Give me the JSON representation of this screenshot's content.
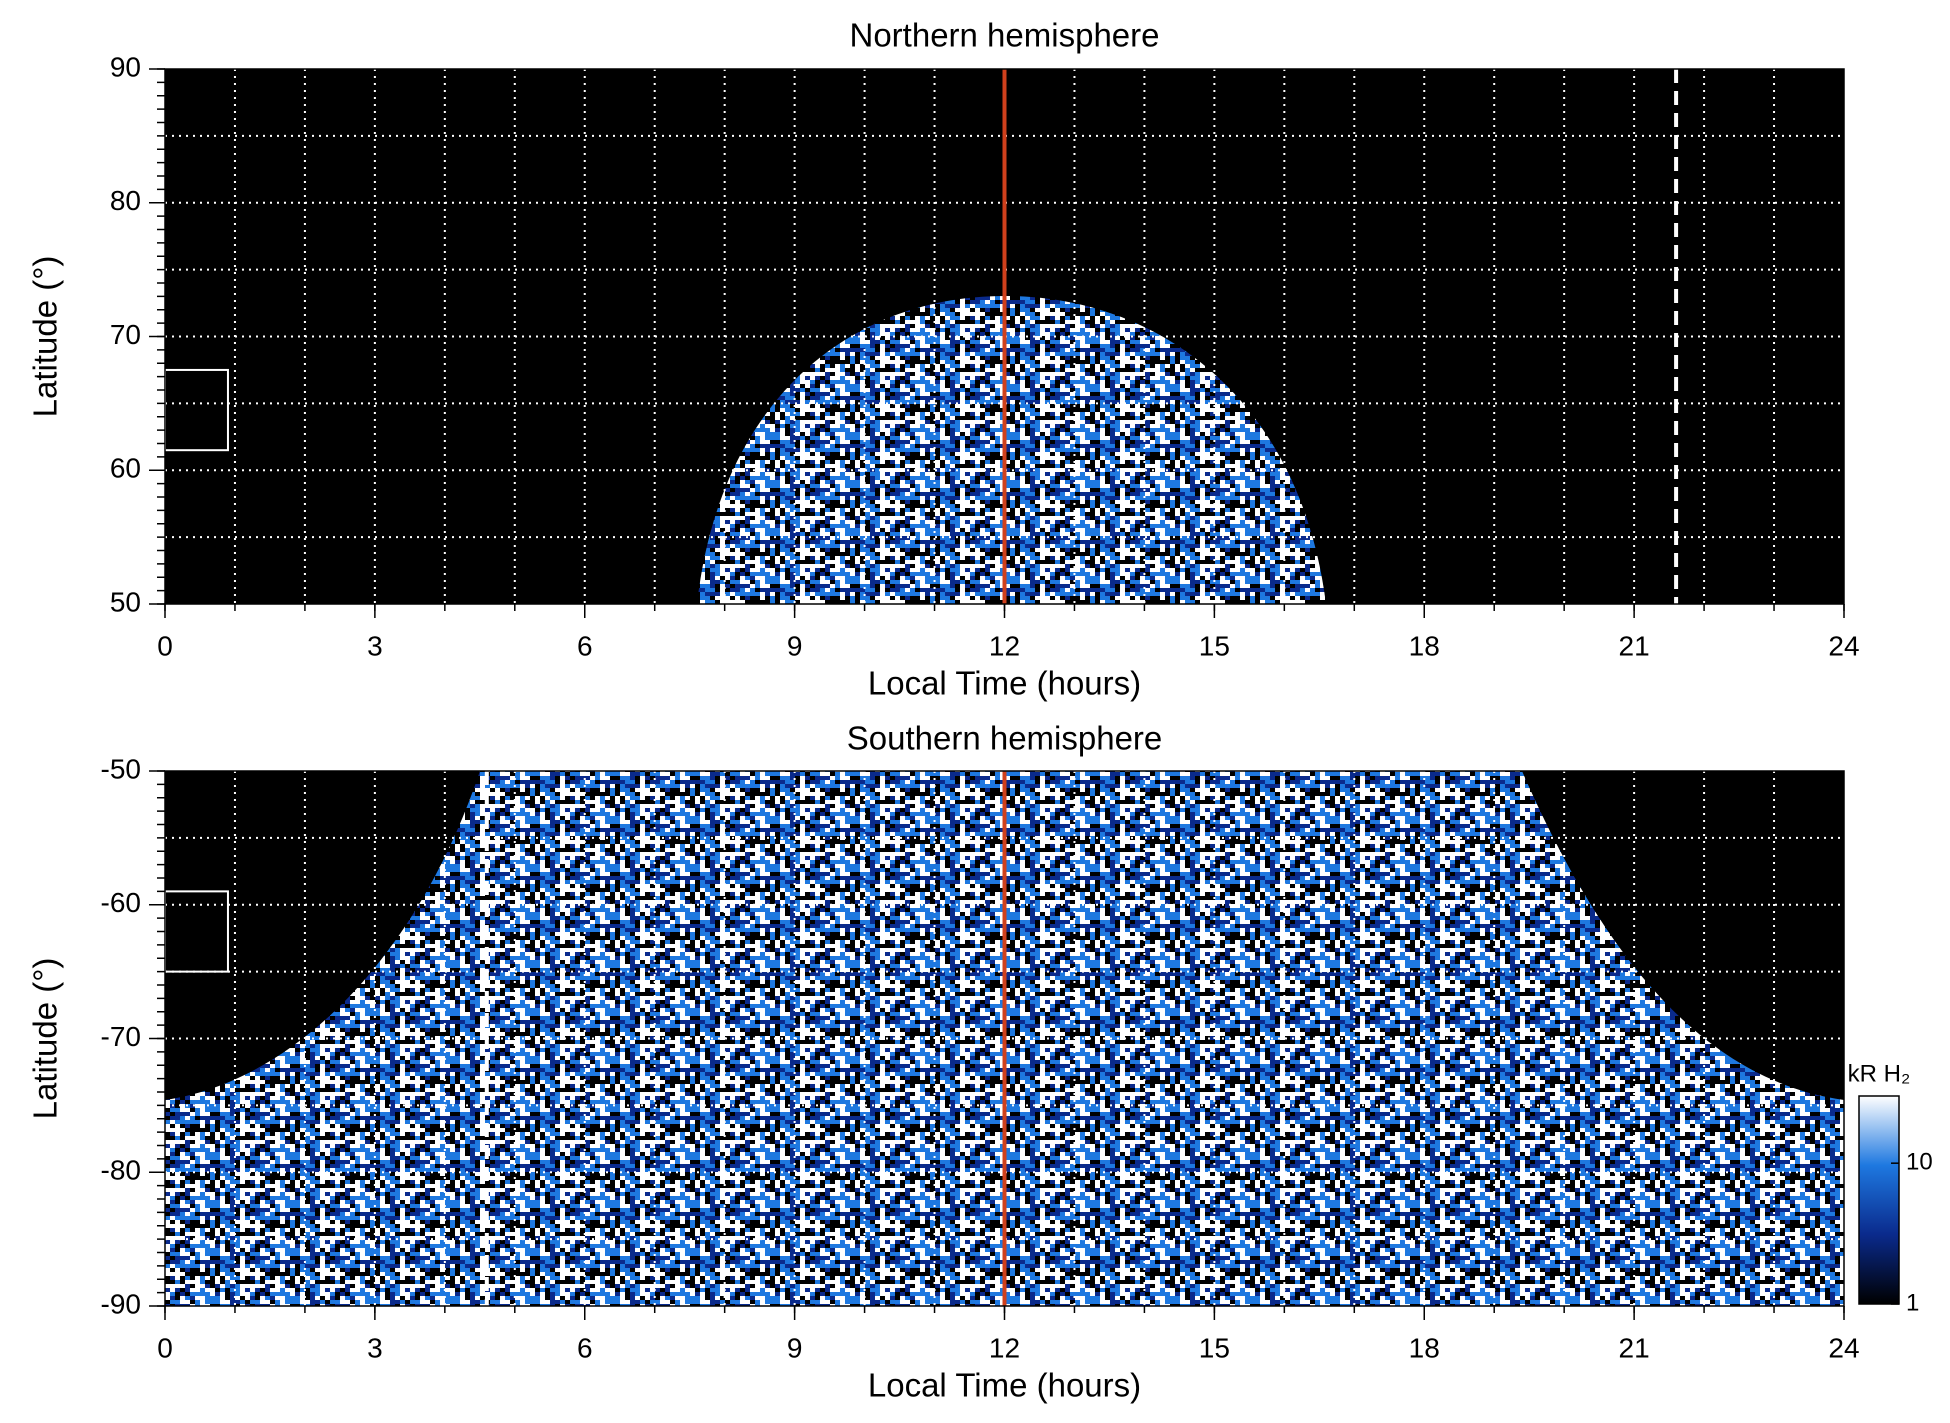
{
  "chart_data": [
    {
      "type": "heatmap",
      "title": "Northern hemisphere",
      "xlabel": "Local Time (hours)",
      "ylabel": "Latitude (°)",
      "xlim": [
        0,
        24
      ],
      "xticks": [
        0,
        3,
        6,
        9,
        12,
        15,
        18,
        21,
        24
      ],
      "ylim": [
        50,
        90
      ],
      "yticks": [
        50,
        60,
        70,
        80,
        90
      ],
      "minor_step": {
        "x": 1,
        "y": 1
      },
      "grid_step": {
        "x": 1,
        "y": 5
      },
      "grid": true,
      "vlines": [
        {
          "x": 12,
          "color": "#d0401c",
          "style": "solid"
        },
        {
          "x": 21.6,
          "color": "#ffffff",
          "style": "dashed"
        }
      ],
      "box": {
        "x": [
          0,
          0.9
        ],
        "y": [
          61.5,
          67.5
        ],
        "color": "#ffffff"
      }
    },
    {
      "type": "heatmap",
      "title": "Southern hemisphere",
      "xlabel": "Local Time (hours)",
      "ylabel": "Latitude (°)",
      "xlim": [
        0,
        24
      ],
      "xticks": [
        0,
        3,
        6,
        9,
        12,
        15,
        18,
        21,
        24
      ],
      "ylim": [
        -90,
        -50
      ],
      "yticks": [
        -90,
        -80,
        -70,
        -60,
        -50
      ],
      "minor_step": {
        "x": 1,
        "y": 1
      },
      "grid_step": {
        "x": 1,
        "y": 5
      },
      "grid": true,
      "vlines": [
        {
          "x": 12,
          "color": "#d0401c",
          "style": "solid"
        },
        {
          "x": 4.6,
          "color": "#ffffff",
          "style": "dashed"
        }
      ],
      "box": {
        "x": [
          0,
          0.9
        ],
        "y": [
          -65,
          -59
        ],
        "color": "#ffffff"
      },
      "colorbar": {
        "label": "kR H₂",
        "log": true,
        "lim": [
          1,
          30
        ],
        "ticks": [
          1,
          10
        ],
        "colors": [
          "#000000",
          "#0a2a8c",
          "#1e78e0",
          "#ffffff"
        ]
      }
    }
  ]
}
